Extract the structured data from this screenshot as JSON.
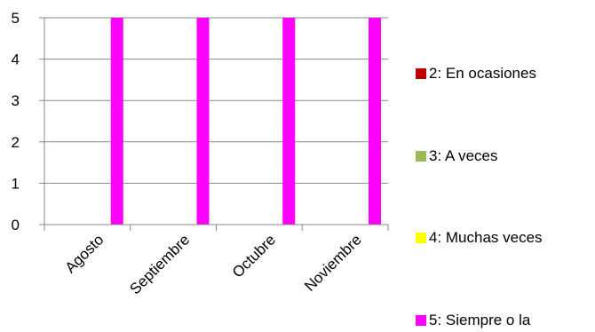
{
  "chart_data": {
    "type": "bar",
    "categories": [
      "Agosto",
      "Septiembre",
      "Octubre",
      "Noviembre"
    ],
    "series": [
      {
        "name": "2: En ocasiones",
        "color": "#c00000",
        "values": [
          0,
          0,
          0,
          0
        ]
      },
      {
        "name": "3: A veces",
        "color": "#9bbb59",
        "values": [
          0,
          0,
          0,
          0
        ]
      },
      {
        "name": "4: Muchas veces",
        "color": "#ffff00",
        "values": [
          0,
          0,
          0,
          0
        ]
      },
      {
        "name": "5: Siempre o la",
        "color": "#ff00ff",
        "values": [
          5,
          5,
          5,
          5
        ]
      }
    ],
    "yticks": [
      "0",
      "1",
      "2",
      "3",
      "4",
      "5"
    ],
    "ylim": [
      0,
      5
    ],
    "grid": true,
    "legend_position": "right",
    "title": "",
    "xlabel": "",
    "ylabel": ""
  }
}
